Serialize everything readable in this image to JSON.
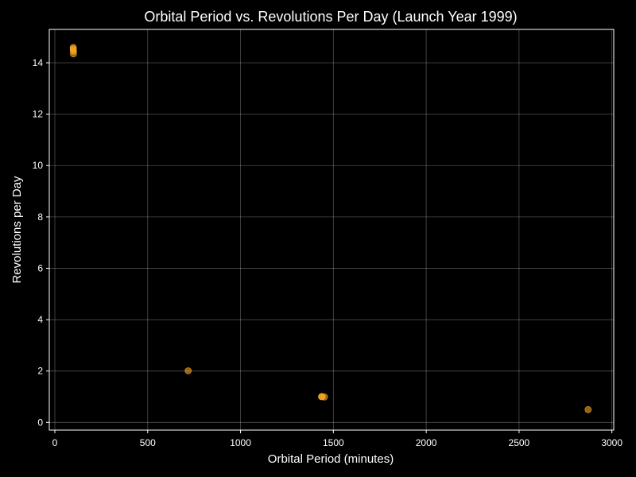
{
  "chart_data": {
    "type": "scatter",
    "title": "Orbital Period vs. Revolutions Per Day (Launch Year 1999)",
    "xlabel": "Orbital Period (minutes)",
    "ylabel": "Revolutions per Day",
    "xlim": [
      -30,
      3010
    ],
    "ylim": [
      -0.3,
      15.3
    ],
    "xticks": [
      0,
      500,
      1000,
      1500,
      2000,
      2500,
      3000
    ],
    "yticks": [
      0,
      2,
      4,
      6,
      8,
      10,
      12,
      14
    ],
    "grid": true,
    "legend": "none",
    "point_color": "#f5a623",
    "points": [
      {
        "x": 99,
        "y": 14.6
      },
      {
        "x": 99,
        "y": 14.55
      },
      {
        "x": 99,
        "y": 14.5
      },
      {
        "x": 100,
        "y": 14.45
      },
      {
        "x": 100,
        "y": 14.35
      },
      {
        "x": 718,
        "y": 2.01
      },
      {
        "x": 1436,
        "y": 1.0
      },
      {
        "x": 1438,
        "y": 1.01
      },
      {
        "x": 1440,
        "y": 1.0
      },
      {
        "x": 1452,
        "y": 0.99
      },
      {
        "x": 2872,
        "y": 0.5
      }
    ]
  }
}
